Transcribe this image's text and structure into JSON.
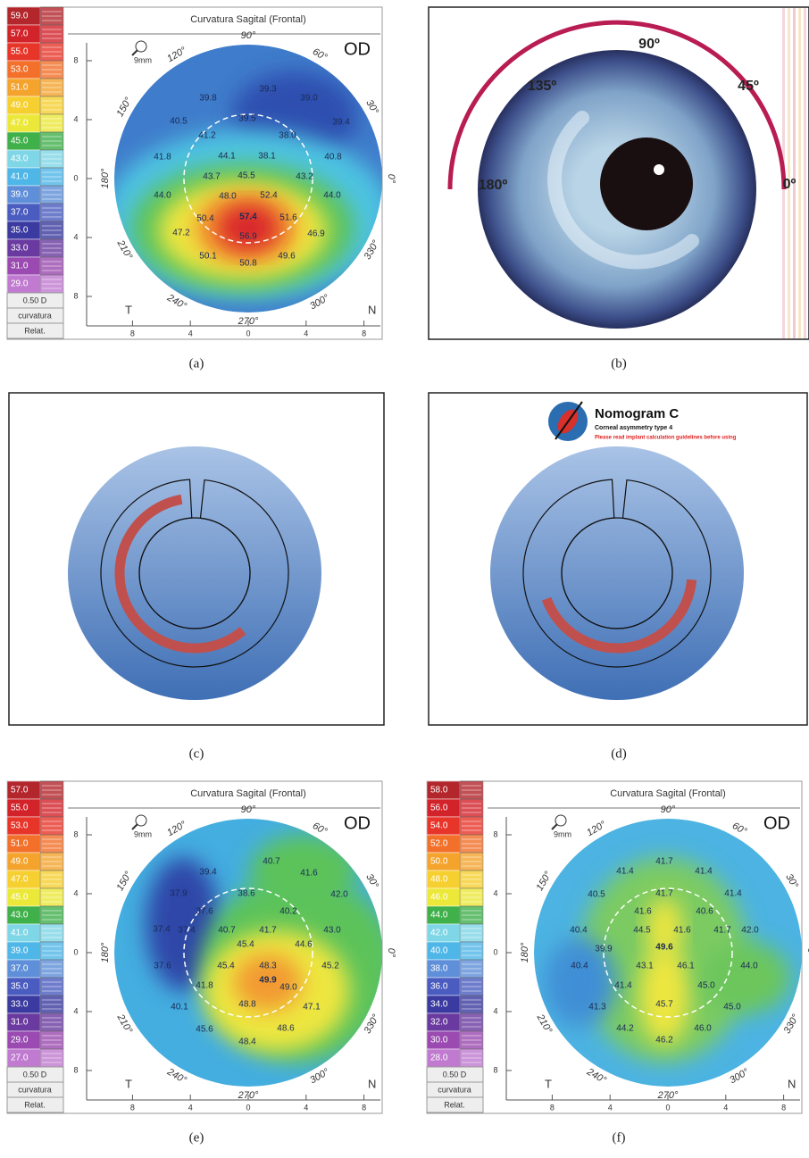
{
  "panels": {
    "a": {
      "label": "(a)",
      "scale": [
        "59.0",
        "57.0",
        "55.0",
        "53.0",
        "51.0",
        "49.0",
        "47.0",
        "45.0",
        "43.0",
        "41.0",
        "39.0",
        "37.0",
        "35.0",
        "33.0",
        "31.0",
        "29.0"
      ],
      "step": "0.50 D",
      "mode": "curvatura",
      "ref": "Relat.",
      "title": "Curvatura Sagital (Frontal)",
      "eye": "OD",
      "zoom": "9mm",
      "angles": [
        "90°",
        "120°",
        "150°",
        "180°",
        "210°",
        "240°",
        "270°",
        "300°",
        "330°",
        "0°",
        "30°",
        "60°"
      ],
      "y_ticks": [
        "8",
        "4",
        "0",
        "4",
        "8"
      ],
      "x_ticks": [
        "8",
        "4",
        "0",
        "4",
        "8"
      ],
      "temporal": "T",
      "nasal": "N",
      "values": [
        "39.8",
        "39.3",
        "39.0",
        "39.5",
        "40.5",
        "39.4",
        "38.0",
        "41.2",
        "38.1",
        "41.8",
        "44.1",
        "40.8",
        "43.7",
        "45.5",
        "43.2",
        "44.0",
        "48.0",
        "52.4",
        "44.0",
        "50.4",
        "57.4",
        "51.6",
        "47.2",
        "56.9",
        "46.9",
        "50.1",
        "50.8",
        "49.6"
      ]
    },
    "b": {
      "label": "(b)",
      "angles": [
        "90º",
        "135º",
        "45º",
        "180º",
        "0º"
      ]
    },
    "c": {
      "label": "(c)"
    },
    "d": {
      "label": "(d)",
      "title": "Nomogram C",
      "subtitle": "Corneal asymmetry type 4",
      "warning": "Please read implant calculation guidelines before using"
    },
    "e": {
      "label": "(e)",
      "scale": [
        "57.0",
        "55.0",
        "53.0",
        "51.0",
        "49.0",
        "47.0",
        "45.0",
        "43.0",
        "41.0",
        "39.0",
        "37.0",
        "35.0",
        "33.0",
        "31.0",
        "29.0",
        "27.0"
      ],
      "step": "0.50 D",
      "mode": "curvatura",
      "ref": "Relat.",
      "title": "Curvatura Sagital (Frontal)",
      "eye": "OD",
      "zoom": "9mm",
      "angles": [
        "90°",
        "120°",
        "150°",
        "180°",
        "210°",
        "240°",
        "270°",
        "300°",
        "330°",
        "0°",
        "30°",
        "60°"
      ],
      "y_ticks": [
        "8",
        "4",
        "0",
        "4",
        "8"
      ],
      "x_ticks": [
        "8",
        "4",
        "0",
        "4",
        "8"
      ],
      "temporal": "T",
      "nasal": "N",
      "values": [
        "39.4",
        "40.7",
        "41.6",
        "37.9",
        "38.6",
        "42.0",
        "37.6",
        "40.2",
        "43.0",
        "37.4",
        "37.4",
        "40.7",
        "41.7",
        "45.4",
        "44.6",
        "37.6",
        "45.4",
        "48.3",
        "45.2",
        "49.0",
        "41.8",
        "40.1",
        "48.8",
        "47.1",
        "45.6",
        "48.6",
        "48.4",
        "49.9"
      ]
    },
    "f": {
      "label": "(f)",
      "scale": [
        "58.0",
        "56.0",
        "54.0",
        "52.0",
        "50.0",
        "48.0",
        "46.0",
        "44.0",
        "42.0",
        "40.0",
        "38.0",
        "36.0",
        "34.0",
        "32.0",
        "30.0",
        "28.0"
      ],
      "step": "0.50 D",
      "mode": "curvatura",
      "ref": "Relat.",
      "title": "Curvatura Sagital (Frontal)",
      "eye": "OD",
      "zoom": "9mm",
      "angles": [
        "90°",
        "120°",
        "150°",
        "180°",
        "210°",
        "240°",
        "270°",
        "300°",
        "330°",
        "0°",
        "30°",
        "60°"
      ],
      "y_ticks": [
        "8",
        "4",
        "0",
        "4",
        "8"
      ],
      "x_ticks": [
        "8",
        "4",
        "0",
        "4",
        "8"
      ],
      "temporal": "T",
      "nasal": "N",
      "values": [
        "41.4",
        "41.7",
        "41.4",
        "40.5",
        "41.7",
        "41.4",
        "41.6",
        "40.6",
        "40.4",
        "44.5",
        "41.6",
        "41.7",
        "42.0",
        "49.6",
        "39.9",
        "40.4",
        "43.1",
        "46.1",
        "44.0",
        "41.4",
        "45.0",
        "45.7",
        "41.3",
        "45.0",
        "44.2",
        "46.0",
        "46.2"
      ]
    }
  }
}
